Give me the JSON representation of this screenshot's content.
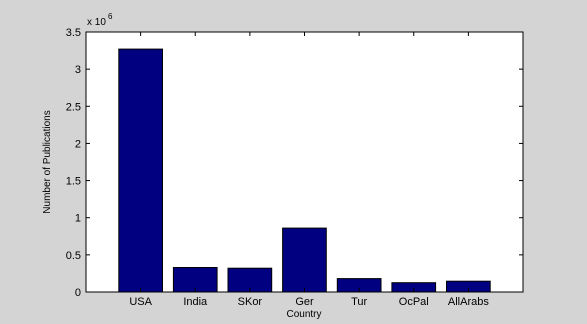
{
  "chart_data": {
    "type": "bar",
    "categories": [
      "USA",
      "India",
      "SKor",
      "Ger",
      "Tur",
      "OcPal",
      "AllArabs"
    ],
    "values": [
      3270000,
      330000,
      320000,
      860000,
      180000,
      125000,
      145000
    ],
    "xlabel": "Country",
    "ylabel": "Number of Publications",
    "ylim": [
      0,
      3500000
    ],
    "yticks": [
      "0",
      "0.5",
      "1",
      "1.5",
      "2",
      "2.5",
      "3",
      "3.5"
    ],
    "exponent_base": "x 10",
    "exponent_power": "6",
    "bar_color": "#000080",
    "grid": false
  }
}
